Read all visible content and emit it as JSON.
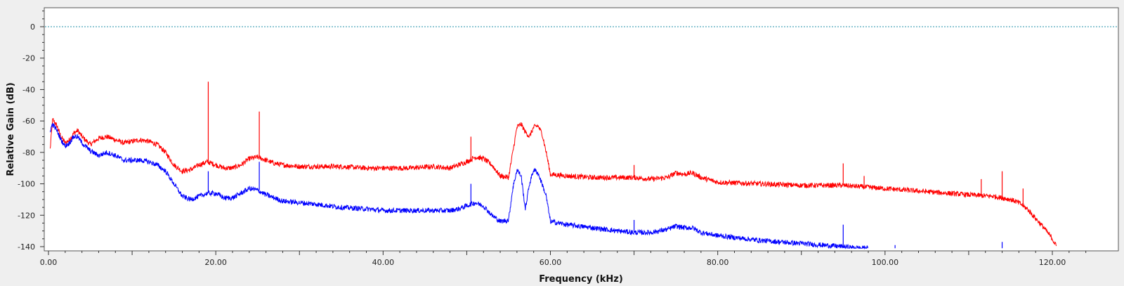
{
  "chart_data": {
    "type": "line",
    "title": "",
    "xlabel": "Frequency (kHz)",
    "ylabel": "Relative Gain (dB)",
    "xlim": [
      0,
      125
    ],
    "ylim": [
      -141,
      12
    ],
    "x_ticks": [
      0,
      20,
      40,
      60,
      80,
      100,
      120
    ],
    "x_tick_labels": [
      "0.00",
      "20.00",
      "40.00",
      "60.00",
      "80.00",
      "100.00",
      "120.00"
    ],
    "y_ticks": [
      0,
      -20,
      -40,
      -60,
      -80,
      -100,
      -120,
      -140
    ],
    "y_tick_labels": [
      "0",
      "-20",
      "-40",
      "-60",
      "-80",
      "-100",
      "-120",
      "-140"
    ],
    "grid": false,
    "reference_line": {
      "y": 0,
      "color": "#1f8fa8",
      "style": "dotted"
    },
    "series": [
      {
        "color": "#ff0000",
        "x": [
          0.2,
          0.5,
          1.0,
          1.5,
          2.0,
          2.5,
          3.0,
          3.5,
          4.0,
          5.0,
          6.0,
          7.0,
          8.0,
          9.0,
          10.0,
          11.0,
          12.0,
          13.0,
          14.0,
          15.0,
          16.0,
          17.0,
          18.0,
          19.0,
          20.0,
          21.0,
          22.0,
          23.0,
          24.0,
          25.0,
          26.0,
          27.0,
          28.0,
          30.0,
          32.0,
          35.0,
          38.0,
          40.0,
          43.0,
          46.0,
          48.0,
          49.0,
          50.0,
          51.0,
          52.0,
          53.0,
          54.0,
          55.0,
          55.5,
          56.0,
          56.5,
          57.0,
          57.5,
          58.0,
          58.5,
          59.0,
          59.5,
          60.0,
          62.0,
          65.0,
          68.0,
          70.0,
          72.0,
          74.0,
          75.0,
          76.0,
          77.0,
          78.0,
          80.0,
          85.0,
          90.0,
          95.0,
          100.0,
          105.0,
          110.0,
          113.0,
          114.0,
          115.0,
          116.0,
          117.0,
          118.0,
          119.0,
          120.0,
          120.5
        ],
        "values": [
          -78,
          -59,
          -63,
          -70,
          -74,
          -72,
          -68,
          -66,
          -70,
          -75,
          -71,
          -70,
          -72,
          -74,
          -73,
          -72,
          -73,
          -75,
          -80,
          -88,
          -92,
          -91,
          -88,
          -86,
          -88,
          -90,
          -90,
          -88,
          -84,
          -83,
          -85,
          -87,
          -88,
          -89,
          -89,
          -89,
          -90,
          -90,
          -90,
          -89,
          -90,
          -88,
          -86,
          -83,
          -84,
          -88,
          -95,
          -96,
          -80,
          -64,
          -62,
          -67,
          -70,
          -64,
          -63,
          -68,
          -80,
          -94,
          -95,
          -96,
          -96,
          -96,
          -97,
          -96,
          -93,
          -94,
          -93,
          -96,
          -99,
          -100,
          -101,
          -101,
          -103,
          -105,
          -107,
          -108,
          -109,
          -110,
          -112,
          -116,
          -122,
          -128,
          -135,
          -140
        ]
      },
      {
        "color": "#0000ff",
        "x": [
          0.2,
          0.5,
          1.0,
          1.5,
          2.0,
          2.5,
          3.0,
          3.5,
          4.0,
          5.0,
          6.0,
          7.0,
          8.0,
          9.0,
          10.0,
          11.0,
          12.0,
          13.0,
          14.0,
          15.0,
          16.0,
          17.0,
          18.0,
          19.0,
          20.0,
          21.0,
          22.0,
          23.0,
          24.0,
          25.0,
          26.0,
          27.0,
          28.0,
          30.0,
          32.0,
          35.0,
          38.0,
          40.0,
          43.0,
          46.0,
          48.0,
          49.0,
          50.0,
          51.0,
          52.0,
          53.0,
          54.0,
          55.0,
          55.5,
          56.0,
          56.5,
          57.0,
          57.5,
          58.0,
          58.5,
          59.0,
          59.5,
          60.0,
          62.0,
          65.0,
          68.0,
          70.0,
          72.0,
          74.0,
          75.0,
          76.0,
          77.0,
          78.0,
          80.0,
          85.0,
          90.0,
          95.0,
          97.0,
          98.0
        ],
        "values": [
          -66,
          -62,
          -66,
          -72,
          -76,
          -74,
          -70,
          -70,
          -74,
          -79,
          -82,
          -80,
          -82,
          -85,
          -85,
          -85,
          -86,
          -88,
          -92,
          -100,
          -108,
          -110,
          -108,
          -106,
          -106,
          -109,
          -109,
          -106,
          -103,
          -104,
          -107,
          -109,
          -111,
          -112,
          -113,
          -115,
          -116,
          -117,
          -117,
          -117,
          -117,
          -116,
          -114,
          -112,
          -114,
          -120,
          -124,
          -123,
          -103,
          -91,
          -95,
          -116,
          -100,
          -91,
          -93,
          -100,
          -108,
          -124,
          -126,
          -128,
          -130,
          -131,
          -131,
          -129,
          -127,
          -128,
          -128,
          -131,
          -133,
          -136,
          -138,
          -140,
          -141,
          -141
        ]
      }
    ],
    "spikes": [
      {
        "series": 0,
        "x": 19.1,
        "top": -35,
        "base": -86
      },
      {
        "series": 0,
        "x": 25.2,
        "top": -54,
        "base": -83
      },
      {
        "series": 0,
        "x": 50.5,
        "top": -70,
        "base": -85
      },
      {
        "series": 0,
        "x": 70.0,
        "top": -88,
        "base": -96
      },
      {
        "series": 0,
        "x": 95.0,
        "top": -87,
        "base": -101
      },
      {
        "series": 0,
        "x": 97.5,
        "top": -95,
        "base": -102
      },
      {
        "series": 0,
        "x": 111.5,
        "top": -97,
        "base": -108
      },
      {
        "series": 0,
        "x": 114.0,
        "top": -92,
        "base": -110
      },
      {
        "series": 0,
        "x": 116.5,
        "top": -103,
        "base": -113
      },
      {
        "series": 1,
        "x": 19.1,
        "top": -92,
        "base": -106
      },
      {
        "series": 1,
        "x": 25.2,
        "top": -86,
        "base": -104
      },
      {
        "series": 1,
        "x": 50.5,
        "top": -100,
        "base": -114
      },
      {
        "series": 1,
        "x": 70.0,
        "top": -123,
        "base": -131
      },
      {
        "series": 1,
        "x": 95.0,
        "top": -126,
        "base": -140
      },
      {
        "series": 1,
        "x": 101.2,
        "top": -139,
        "base": -141
      },
      {
        "series": 1,
        "x": 114.0,
        "top": -137,
        "base": -141
      }
    ]
  }
}
